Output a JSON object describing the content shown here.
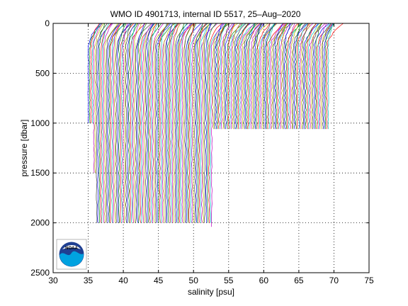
{
  "chart_data": {
    "type": "line",
    "title": "WMO ID 4901713, internal ID 5517, 25–Aug–2020",
    "xlabel": "salinity [psu]",
    "ylabel": "pressure [dbar]",
    "xlim": [
      30,
      75
    ],
    "ylim": [
      0,
      2500
    ],
    "y_reversed": true,
    "grid": true,
    "grid_style": "dotted",
    "x_ticks": [
      "30",
      "35",
      "40",
      "45",
      "50",
      "55",
      "60",
      "65",
      "70",
      "75"
    ],
    "y_ticks": [
      "0",
      "500",
      "1000",
      "1500",
      "2000",
      "2500"
    ],
    "profile_offset_psu": 0.2,
    "profile_colors": [
      "#0000ff",
      "#008000",
      "#ff0000",
      "#00bfbf",
      "#bf00bf",
      "#bfbf00",
      "#404040"
    ],
    "profile_groups": [
      {
        "start_psu": 35.0,
        "count": 4,
        "max_pressure": 1000
      },
      {
        "start_psu": 35.8,
        "count": 2,
        "max_pressure": 1500
      },
      {
        "start_psu": 36.2,
        "count": 82,
        "max_pressure": 2000
      },
      {
        "start_psu": 52.6,
        "count": 1,
        "max_pressure": 2040
      },
      {
        "start_psu": 52.8,
        "count": 83,
        "max_pressure": 1060
      }
    ],
    "logo": "noaa-logo"
  }
}
